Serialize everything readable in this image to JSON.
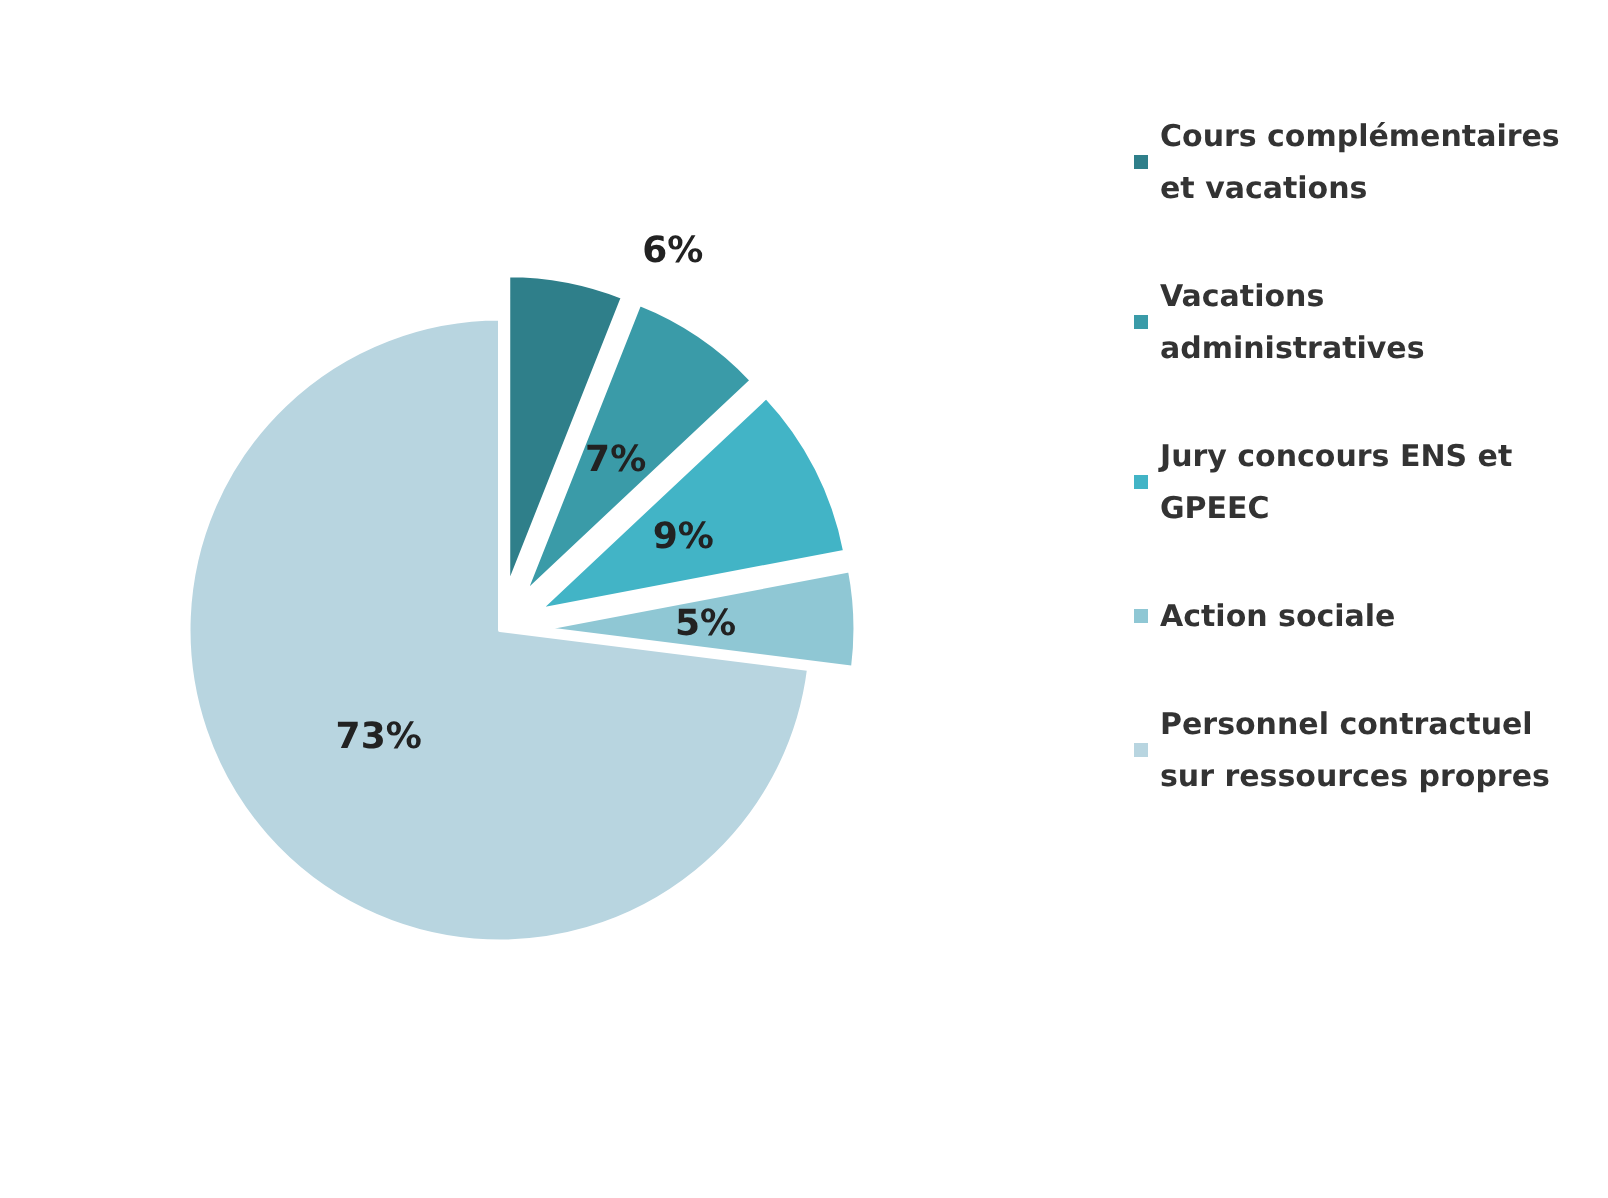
{
  "chart_data": {
    "type": "pie",
    "categories": [
      "Cours complémentaires et vacations",
      "Vacations administratives",
      "Jury concours ENS et GPEEC",
      "Action sociale",
      "Personnel contractuel sur ressources propres"
    ],
    "values": [
      6,
      7,
      9,
      5,
      73
    ],
    "value_labels": [
      "6%",
      "7%",
      "9%",
      "5%",
      "73%"
    ],
    "colors": [
      "#2f7f8a",
      "#3a9ba8",
      "#42b4c6",
      "#8fc7d4",
      "#b8d5e0"
    ],
    "legend": "right"
  }
}
